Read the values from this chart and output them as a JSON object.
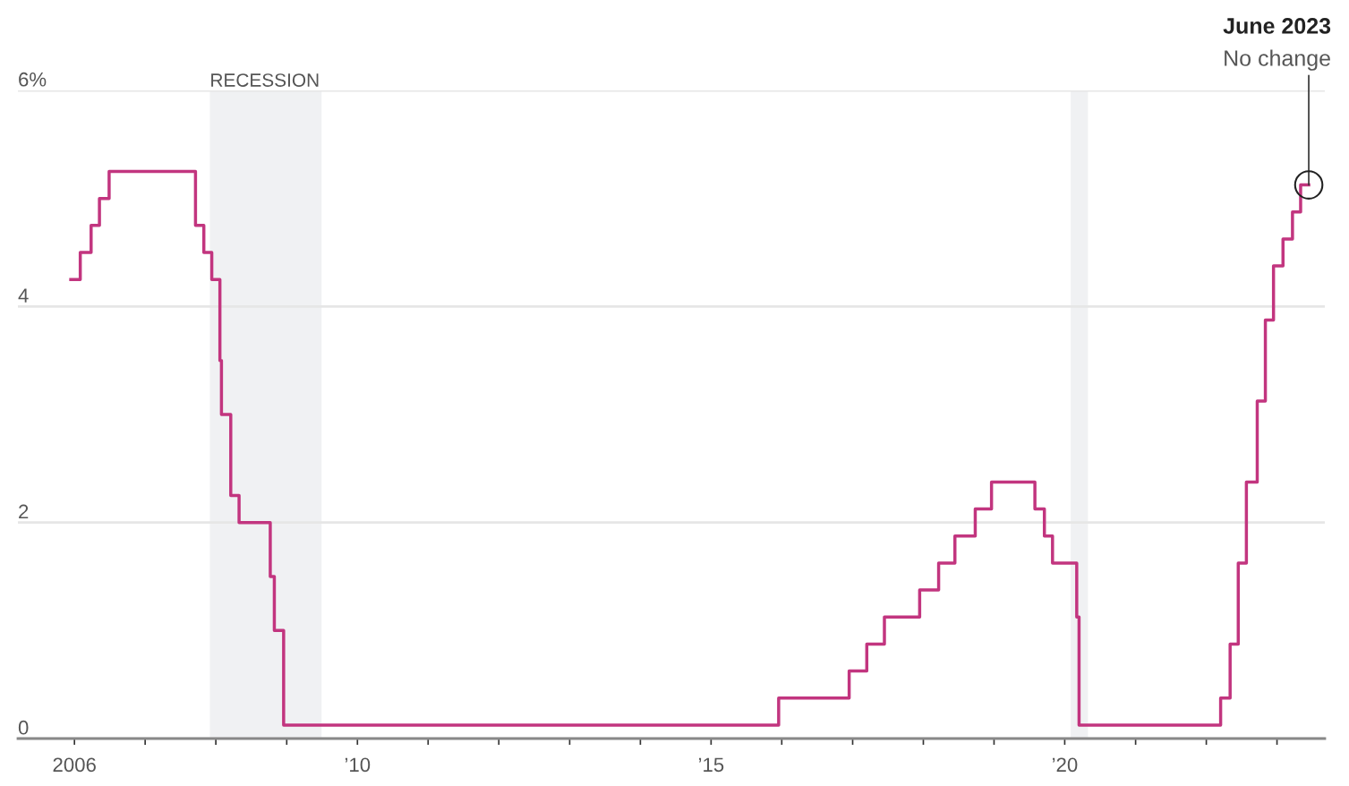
{
  "chart_data": {
    "type": "step",
    "x": [
      "2005-12-13",
      "2006-01-31",
      "2006-03-28",
      "2006-05-10",
      "2006-06-29",
      "2007-09-18",
      "2007-10-31",
      "2007-12-11",
      "2008-01-22",
      "2008-01-30",
      "2008-03-18",
      "2008-04-30",
      "2008-10-08",
      "2008-10-29",
      "2008-12-16",
      "2015-12-16",
      "2016-12-14",
      "2017-03-15",
      "2017-06-14",
      "2017-12-13",
      "2018-03-21",
      "2018-06-13",
      "2018-09-26",
      "2018-12-19",
      "2019-07-31",
      "2019-09-18",
      "2019-10-30",
      "2020-03-03",
      "2020-03-15",
      "2022-03-16",
      "2022-05-04",
      "2022-06-15",
      "2022-07-27",
      "2022-09-21",
      "2022-11-02",
      "2022-12-14",
      "2023-02-01",
      "2023-03-22",
      "2023-05-03",
      "2023-06-14"
    ],
    "series": [
      {
        "color": "#c2357f",
        "values": [
          4.25,
          4.5,
          4.75,
          5.0,
          5.25,
          4.75,
          4.5,
          4.25,
          3.5,
          3.0,
          2.25,
          2.0,
          1.5,
          1.0,
          0.125,
          0.375,
          0.625,
          0.875,
          1.125,
          1.375,
          1.625,
          1.875,
          2.125,
          2.375,
          2.125,
          1.875,
          1.625,
          1.125,
          0.125,
          0.375,
          0.875,
          1.625,
          2.375,
          3.125,
          3.875,
          4.375,
          4.625,
          4.875,
          5.125,
          5.125
        ]
      }
    ],
    "xlim": [
      "2005-03-15",
      "2023-09-05"
    ],
    "xticks": [
      {
        "value": "2006-01-01",
        "label": "2006"
      },
      {
        "value": "2007-01-01",
        "label": null
      },
      {
        "value": "2008-01-01",
        "label": null
      },
      {
        "value": "2009-01-01",
        "label": null
      },
      {
        "value": "2010-01-01",
        "label": "’10"
      },
      {
        "value": "2011-01-01",
        "label": null
      },
      {
        "value": "2012-01-01",
        "label": null
      },
      {
        "value": "2013-01-01",
        "label": null
      },
      {
        "value": "2014-01-01",
        "label": null
      },
      {
        "value": "2015-01-01",
        "label": "’15"
      },
      {
        "value": "2016-01-01",
        "label": null
      },
      {
        "value": "2017-01-01",
        "label": null
      },
      {
        "value": "2018-01-01",
        "label": null
      },
      {
        "value": "2019-01-01",
        "label": null
      },
      {
        "value": "2020-01-01",
        "label": "’20"
      },
      {
        "value": "2021-01-01",
        "label": null
      },
      {
        "value": "2022-01-01",
        "label": null
      },
      {
        "value": "2023-01-01",
        "label": null
      }
    ],
    "ylim": [
      0,
      6
    ],
    "yticks": [
      0,
      2,
      4,
      {
        "value": 6,
        "label": "6%"
      }
    ],
    "grid": "y",
    "bands": [
      {
        "axis": "x",
        "from": "2007-12-01",
        "to": "2009-06-30",
        "label": "RECESSION",
        "color": "#f0f1f3"
      },
      {
        "axis": "x",
        "from": "2020-02-01",
        "to": "2020-04-30",
        "color": "#f0f1f3"
      }
    ],
    "annotations": [
      "June 2023",
      {
        "text": "No change",
        "x": "2023-06-14",
        "y": 5.125
      }
    ]
  }
}
